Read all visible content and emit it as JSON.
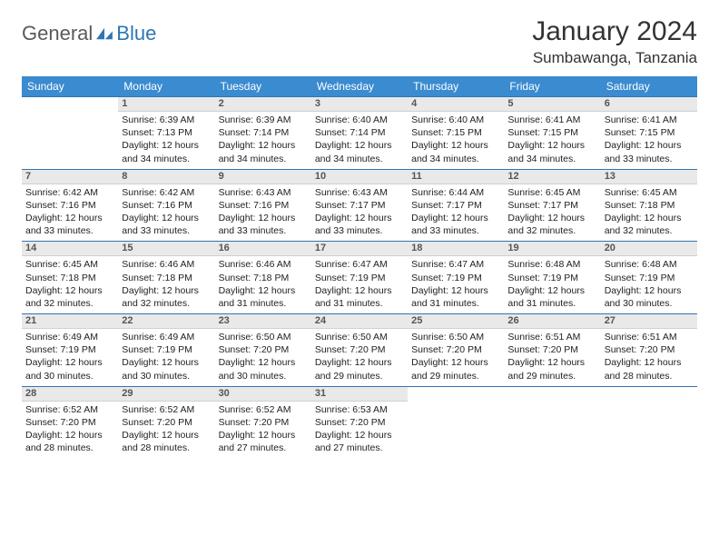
{
  "brand": {
    "part1": "General",
    "part2": "Blue"
  },
  "title": "January 2024",
  "location": "Sumbawanga, Tanzania",
  "colors": {
    "header_bg": "#3a8bd0",
    "header_text": "#ffffff",
    "daynum_bg": "#e9e9e9",
    "rule": "#2f75b5",
    "brand_gray": "#5a5a5a",
    "brand_blue": "#2f75b5"
  },
  "weekdays": [
    "Sunday",
    "Monday",
    "Tuesday",
    "Wednesday",
    "Thursday",
    "Friday",
    "Saturday"
  ],
  "weeks": [
    [
      null,
      {
        "n": "1",
        "sr": "6:39 AM",
        "ss": "7:13 PM",
        "dl": "12 hours and 34 minutes."
      },
      {
        "n": "2",
        "sr": "6:39 AM",
        "ss": "7:14 PM",
        "dl": "12 hours and 34 minutes."
      },
      {
        "n": "3",
        "sr": "6:40 AM",
        "ss": "7:14 PM",
        "dl": "12 hours and 34 minutes."
      },
      {
        "n": "4",
        "sr": "6:40 AM",
        "ss": "7:15 PM",
        "dl": "12 hours and 34 minutes."
      },
      {
        "n": "5",
        "sr": "6:41 AM",
        "ss": "7:15 PM",
        "dl": "12 hours and 34 minutes."
      },
      {
        "n": "6",
        "sr": "6:41 AM",
        "ss": "7:15 PM",
        "dl": "12 hours and 33 minutes."
      }
    ],
    [
      {
        "n": "7",
        "sr": "6:42 AM",
        "ss": "7:16 PM",
        "dl": "12 hours and 33 minutes."
      },
      {
        "n": "8",
        "sr": "6:42 AM",
        "ss": "7:16 PM",
        "dl": "12 hours and 33 minutes."
      },
      {
        "n": "9",
        "sr": "6:43 AM",
        "ss": "7:16 PM",
        "dl": "12 hours and 33 minutes."
      },
      {
        "n": "10",
        "sr": "6:43 AM",
        "ss": "7:17 PM",
        "dl": "12 hours and 33 minutes."
      },
      {
        "n": "11",
        "sr": "6:44 AM",
        "ss": "7:17 PM",
        "dl": "12 hours and 33 minutes."
      },
      {
        "n": "12",
        "sr": "6:45 AM",
        "ss": "7:17 PM",
        "dl": "12 hours and 32 minutes."
      },
      {
        "n": "13",
        "sr": "6:45 AM",
        "ss": "7:18 PM",
        "dl": "12 hours and 32 minutes."
      }
    ],
    [
      {
        "n": "14",
        "sr": "6:45 AM",
        "ss": "7:18 PM",
        "dl": "12 hours and 32 minutes."
      },
      {
        "n": "15",
        "sr": "6:46 AM",
        "ss": "7:18 PM",
        "dl": "12 hours and 32 minutes."
      },
      {
        "n": "16",
        "sr": "6:46 AM",
        "ss": "7:18 PM",
        "dl": "12 hours and 31 minutes."
      },
      {
        "n": "17",
        "sr": "6:47 AM",
        "ss": "7:19 PM",
        "dl": "12 hours and 31 minutes."
      },
      {
        "n": "18",
        "sr": "6:47 AM",
        "ss": "7:19 PM",
        "dl": "12 hours and 31 minutes."
      },
      {
        "n": "19",
        "sr": "6:48 AM",
        "ss": "7:19 PM",
        "dl": "12 hours and 31 minutes."
      },
      {
        "n": "20",
        "sr": "6:48 AM",
        "ss": "7:19 PM",
        "dl": "12 hours and 30 minutes."
      }
    ],
    [
      {
        "n": "21",
        "sr": "6:49 AM",
        "ss": "7:19 PM",
        "dl": "12 hours and 30 minutes."
      },
      {
        "n": "22",
        "sr": "6:49 AM",
        "ss": "7:19 PM",
        "dl": "12 hours and 30 minutes."
      },
      {
        "n": "23",
        "sr": "6:50 AM",
        "ss": "7:20 PM",
        "dl": "12 hours and 30 minutes."
      },
      {
        "n": "24",
        "sr": "6:50 AM",
        "ss": "7:20 PM",
        "dl": "12 hours and 29 minutes."
      },
      {
        "n": "25",
        "sr": "6:50 AM",
        "ss": "7:20 PM",
        "dl": "12 hours and 29 minutes."
      },
      {
        "n": "26",
        "sr": "6:51 AM",
        "ss": "7:20 PM",
        "dl": "12 hours and 29 minutes."
      },
      {
        "n": "27",
        "sr": "6:51 AM",
        "ss": "7:20 PM",
        "dl": "12 hours and 28 minutes."
      }
    ],
    [
      {
        "n": "28",
        "sr": "6:52 AM",
        "ss": "7:20 PM",
        "dl": "12 hours and 28 minutes."
      },
      {
        "n": "29",
        "sr": "6:52 AM",
        "ss": "7:20 PM",
        "dl": "12 hours and 28 minutes."
      },
      {
        "n": "30",
        "sr": "6:52 AM",
        "ss": "7:20 PM",
        "dl": "12 hours and 27 minutes."
      },
      {
        "n": "31",
        "sr": "6:53 AM",
        "ss": "7:20 PM",
        "dl": "12 hours and 27 minutes."
      },
      null,
      null,
      null
    ]
  ],
  "labels": {
    "sunrise": "Sunrise:",
    "sunset": "Sunset:",
    "daylight": "Daylight:"
  }
}
